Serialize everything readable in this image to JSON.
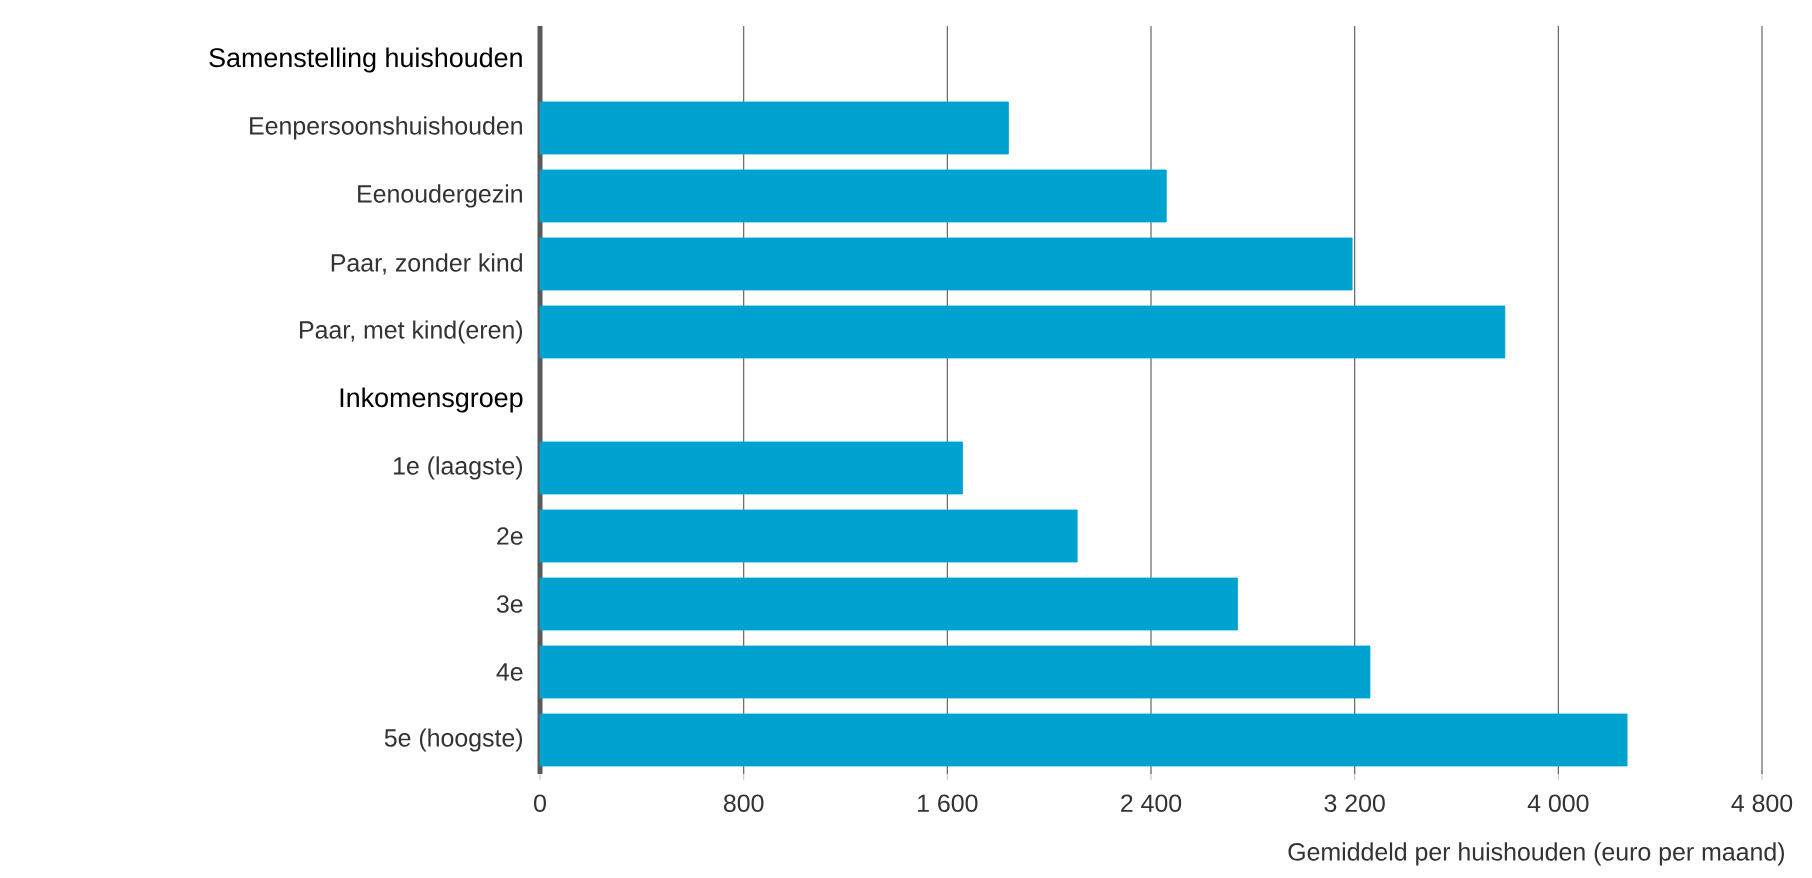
{
  "chart_data": {
    "type": "bar",
    "orientation": "horizontal",
    "xlabel": "Gemiddeld per huishouden (euro per maand)",
    "categories": [
      "Samenstelling huishouden",
      "Eenpersoonshuishouden",
      "Eenoudergezin",
      "Paar, zonder kind",
      "Paar, met kind(eren)",
      "Inkomensgroep",
      "1e (laagste)",
      "2e",
      "3e",
      "4e",
      "5e (hoogste)"
    ],
    "values": [
      null,
      1840,
      2460,
      3190,
      3790,
      null,
      1660,
      2110,
      2740,
      3260,
      4270
    ],
    "color": "#00a2cf",
    "xlim": [
      0,
      4800
    ],
    "xticks": [
      0,
      800,
      {
        "value": 1600,
        "label": "1 600"
      },
      {
        "value": 2400,
        "label": "2 400"
      },
      {
        "value": 3200,
        "label": "3 200"
      },
      {
        "value": 4000,
        "label": "4 000"
      },
      {
        "value": 4800,
        "label": "4 800"
      }
    ],
    "grid": "x"
  }
}
